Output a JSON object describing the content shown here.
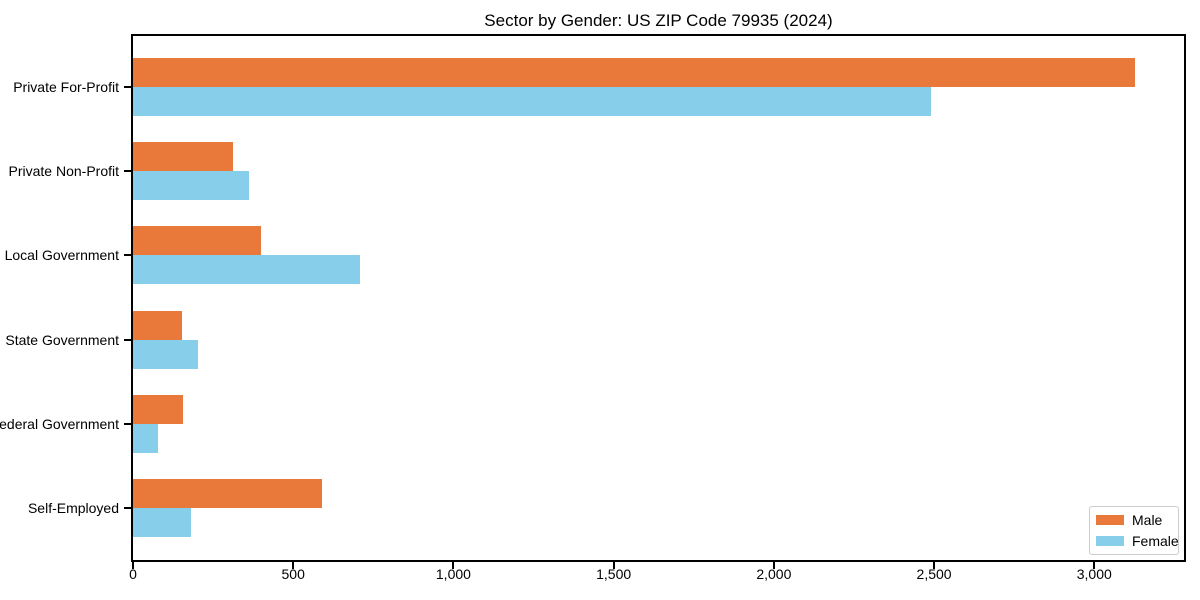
{
  "title": "Sector by Gender: US ZIP Code 79935 (2024)",
  "legend": {
    "position": "lower right",
    "items": [
      {
        "label": "Male",
        "color": "#E8793A"
      },
      {
        "label": "Female",
        "color": "#87CEEB"
      }
    ]
  },
  "chart_data": {
    "type": "bar",
    "orientation": "horizontal",
    "title": "Sector by Gender: US ZIP Code 79935 (2024)",
    "categories": [
      "Private For-Profit",
      "Private Non-Profit",
      "Local Government",
      "State Government",
      "Federal Government",
      "Self-Employed"
    ],
    "series": [
      {
        "name": "Male",
        "color": "#E8793A",
        "values": [
          3128,
          313,
          398,
          153,
          155,
          590
        ]
      },
      {
        "name": "Female",
        "color": "#87CEEB",
        "values": [
          2489,
          361,
          709,
          204,
          78,
          182
        ]
      }
    ],
    "xlabel": "",
    "ylabel": "",
    "xlim": [
      0,
      3280
    ],
    "xticks": [
      0,
      500,
      1000,
      1500,
      2000,
      2500,
      3000
    ],
    "xtick_labels": [
      "0",
      "500",
      "1,000",
      "1,500",
      "2,000",
      "2,500",
      "3,000"
    ],
    "grid": false,
    "legend_position": "lower right"
  }
}
